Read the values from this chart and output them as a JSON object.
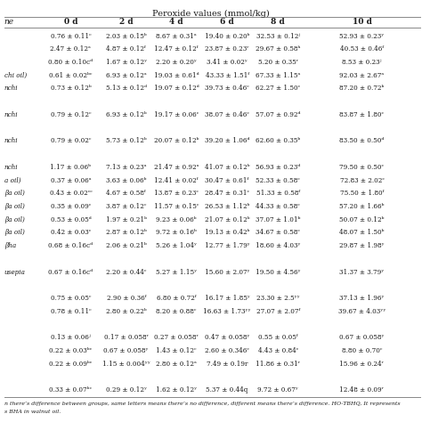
{
  "title": "Peroxide values (mmol/kg)",
  "col_headers": [
    "ne",
    "0 d",
    "2 d",
    "4 d",
    "6 d",
    "8 d",
    "10 d"
  ],
  "rows": [
    [
      "",
      "0.76 ± 0.11ᶜ",
      "2.03 ± 0.15ᵇ",
      "8.67 ± 0.31ᵃ",
      "19.40 ± 0.20ᵇ",
      "32.53 ± 0.12ʲ",
      "52.93 ± 0.23ʸ"
    ],
    [
      "",
      "2.47 ± 0.12ᵃ",
      "4.87 ± 0.12ᶠ",
      "12.47 ± 0.12ᶠ",
      "23.87 ± 0.23ʳ",
      "29.67 ± 0.58ʰ",
      "40.53 ± 0.46ᶠ"
    ],
    [
      "",
      "0.80 ± 0.10cᵈ",
      "1.67 ± 0.12ʸ",
      "2.20 ± 0.20ʸ",
      "3.41 ± 0.02ʸ",
      "5.20 ± 0.35ʳ",
      "8.53 ± 0.23ʲ"
    ],
    [
      "chi oil)",
      "0.61 ± 0.02ᵇᶜ",
      "6.93 ± 0.12ᵃ",
      "19.03 ± 0.61ᵈ",
      "43.33 ± 1.51ᶠ",
      "67.33 ± 1.15ᵃ",
      "92.03 ± 2.67ᵃ"
    ],
    [
      "nchi",
      "0.73 ± 0.12ᵇ",
      "5.13 ± 0.12ᵈ",
      "19.07 ± 0.12ᵈ",
      "39.73 ± 0.46ᶜ",
      "62.27 ± 1.50ᶜ",
      "87.20 ± 0.72ᵇ"
    ],
    [
      "",
      "",
      "",
      "",
      "",
      "",
      ""
    ],
    [
      "nchi",
      "0.79 ± 0.12ᶜ",
      "6.93 ± 0.12ᵇ",
      "19.17 ± 0.06ᶜ",
      "38.07 ± 0.46ᶜ",
      "57.07 ± 0.92ᵈ",
      "83.87 ± 1.80ᶜ"
    ],
    [
      "",
      "",
      "",
      "",
      "",
      "",
      ""
    ],
    [
      "nchi",
      "0.79 ± 0.02ᶜ",
      "5.73 ± 0.12ᵇ",
      "20.07 ± 0.12ᵇ",
      "39.20 ± 1.06ᵈ",
      "62.60 ± 0.35ᵇ",
      "83.50 ± 0.50ᵈ"
    ],
    [
      "",
      "",
      "",
      "",
      "",
      "",
      ""
    ],
    [
      "nchi",
      "1.17 ± 0.06ᵇ",
      "7.13 ± 0.23ᵃ",
      "21.47 ± 0.92ᵃ",
      "41.07 ± 0.12ᵇ",
      "56.93 ± 0.23ᵈ",
      "79.50 ± 0.50ᶜ"
    ],
    [
      "a oil)",
      "0.37 ± 0.06ᵃ",
      "3.63 ± 0.06ᵇ",
      "12.41 ± 0.02ᶠ",
      "30.47 ± 0.61ᶠ",
      "52.33 ± 0.58ᶜ",
      "72.83 ± 2.02ᶜ"
    ],
    [
      "βa oil)",
      "0.43 ± 0.02ᶜᶜ",
      "4.67 ± 0.58ᶠ",
      "13.87 ± 0.23ᶜ",
      "28.47 ± 0.31ᶜ",
      "51.33 ± 0.58ᶠ",
      "75.50 ± 1.80ᶠ"
    ],
    [
      "βa oil)",
      "0.35 ± 0.09ᶜ",
      "3.87 ± 0.12ᶜ",
      "11.57 ± 0.15ᶜ",
      "26.53 ± 1.12ᵇ",
      "44.33 ± 0.58ᶜ",
      "57.20 ± 1.66ᵇ"
    ],
    [
      "βa oil)",
      "0.53 ± 0.05ᵈ",
      "1.97 ± 0.21ᵇ",
      "9.23 ± 0.06ᵇ",
      "21.07 ± 0.12ᵇ",
      "37.07 ± 1.01ᵇ",
      "50.07 ± 0.12ᵇ"
    ],
    [
      "βa oil)",
      "0.42 ± 0.03ᶜ",
      "2.87 ± 0.12ᵇ",
      "9.72 ± 0.16ᵇ",
      "19.13 ± 0.42ᵇ",
      "34.67 ± 0.58ᶜ",
      "48.07 ± 1.50ᵇ"
    ],
    [
      "βha",
      "0.68 ± 0.16cᵈ",
      "2.06 ± 0.21ᵇ",
      "5.26 ± 1.04ʸ",
      "12.77 ± 1.79ʸ",
      "18.60 ± 4.03ʸ",
      "29.87 ± 1.98ʸ"
    ],
    [
      "",
      "",
      "",
      "",
      "",
      "",
      ""
    ],
    [
      "usepia",
      "0.67 ± 0.16cᵈ",
      "2.20 ± 0.44ᶜ",
      "5.27 ± 1.15ʸ",
      "15.60 ± 2.07ʸ",
      "19.50 ± 4.56ʸ",
      "31.37 ± 3.79ʸ"
    ],
    [
      "",
      "",
      "",
      "",
      "",
      "",
      ""
    ],
    [
      "",
      "0.75 ± 0.05ᶜ",
      "2.90 ± 0.36ᶠ",
      "6.80 ± 0.72ᶠ",
      "16.17 ± 1.85ʸ",
      "23.30 ± 2.5ʸʸ",
      "37.13 ± 1.96ʸ"
    ],
    [
      "",
      "0.78 ± 0.11ᶜ",
      "2.80 ± 0.22ᵇ",
      "8.20 ± 0.88ᶜ",
      "16.63 ± 1.73ʸʸ",
      "27.07 ± 2.07ᶠ",
      "39.67 ± 4.03ʸʸ"
    ],
    [
      "",
      "",
      "",
      "",
      "",
      "",
      ""
    ],
    [
      "",
      "0.13 ± 0.06ʲ",
      "0.17 ± 0.058ʳ",
      "0.27 ± 0.058ʳ",
      "0.47 ± 0.058ʸ",
      "0.55 ± 0.05ᶠ",
      "0.67 ± 0.058ʸ"
    ],
    [
      "",
      "0.22 ± 0.03ᵇᶜ",
      "0.67 ± 0.058ʸ",
      "1.43 ± 0.12ᶜ",
      "2.60 ± 0.346ᶜ",
      "4.43 ± 0.84ᶜ",
      "8.80 ± 0.70ᶜ"
    ],
    [
      "",
      "0.22 ± 0.09ᵇᶜ",
      "1.15 ± 0.004ʸʸ",
      "2.80 ± 0.12ᵃ",
      "7.49 ± 0.19r",
      "11.86 ± 0.31ʳ",
      "15.96 ± 0.24ʳ"
    ],
    [
      "",
      "",
      "",
      "",
      "",
      "",
      ""
    ],
    [
      "",
      "0.33 ± 0.07ᵇᶜ",
      "0.29 ± 0.12ʸ",
      "1.62 ± 0.12ʸ",
      "5.37 ± 0.44q",
      "9.72 ± 0.67ʸ",
      "12.48 ± 0.09ʳ"
    ]
  ],
  "footnote1": "n there’s difference between groups, same letters means there’s no difference, different means there’s difference. HO-TBHQ, It represents",
  "footnote2": "s BHA in walnut oil.",
  "bg_color": "#ffffff",
  "text_color": "#1a1a1a",
  "line_color": "#888888",
  "title_fontsize": 7.0,
  "header_fontsize": 6.5,
  "cell_fontsize": 5.2,
  "footnote_fontsize": 4.5
}
